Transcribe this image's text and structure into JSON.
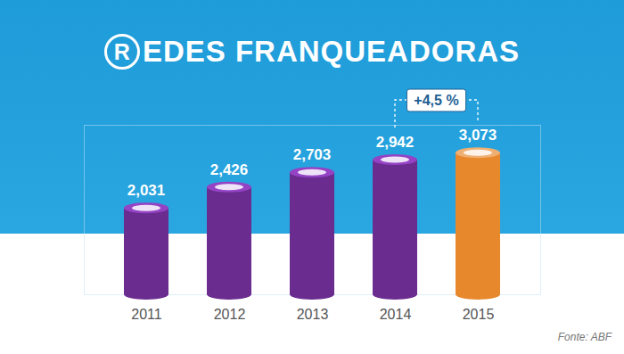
{
  "chart_data": {
    "type": "bar",
    "title": "REDES FRANQUEADORAS",
    "categories": [
      "2011",
      "2012",
      "2013",
      "2014",
      "2015"
    ],
    "values": [
      2031,
      2426,
      2703,
      2942,
      3073
    ],
    "value_labels": [
      "2,031",
      "2,426",
      "2,703",
      "2,942",
      "3,073"
    ],
    "colors": [
      "#6a2c8f",
      "#6a2c8f",
      "#6a2c8f",
      "#6a2c8f",
      "#e8882d"
    ],
    "data_labels": true,
    "tick_labels": "x",
    "ylim": [
      400,
      3600
    ],
    "yticks": [],
    "annotation": "+4,5 %",
    "source": "Fonte: ABF"
  }
}
